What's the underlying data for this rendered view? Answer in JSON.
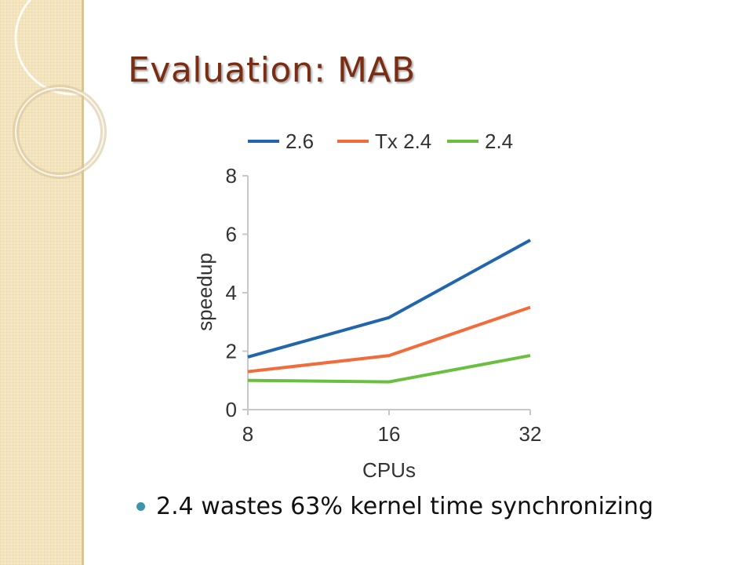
{
  "slide": {
    "title": "Evaluation: MAB",
    "bullet": "2.4 wastes 63% kernel time synchronizing"
  },
  "colors": {
    "title": "#7a2d12",
    "bullet": "#3a96a8"
  },
  "chart_data": {
    "type": "line",
    "x": [
      8,
      16,
      32
    ],
    "x_tick_labels": [
      "8",
      "16",
      "32"
    ],
    "xlabel": "CPUs",
    "ylabel": "speedup",
    "ylim": [
      0,
      8
    ],
    "yticks": [
      0,
      2,
      4,
      6,
      8
    ],
    "legend_position": "top",
    "grid": false,
    "series": [
      {
        "name": "2.6",
        "color": "#2166ac",
        "values": [
          1.8,
          3.15,
          5.8
        ]
      },
      {
        "name": "Tx 2.4",
        "color": "#f26b3a",
        "values": [
          1.3,
          1.85,
          3.5
        ]
      },
      {
        "name": "2.4",
        "color": "#6abf40",
        "values": [
          1.0,
          0.95,
          1.85
        ]
      }
    ]
  }
}
